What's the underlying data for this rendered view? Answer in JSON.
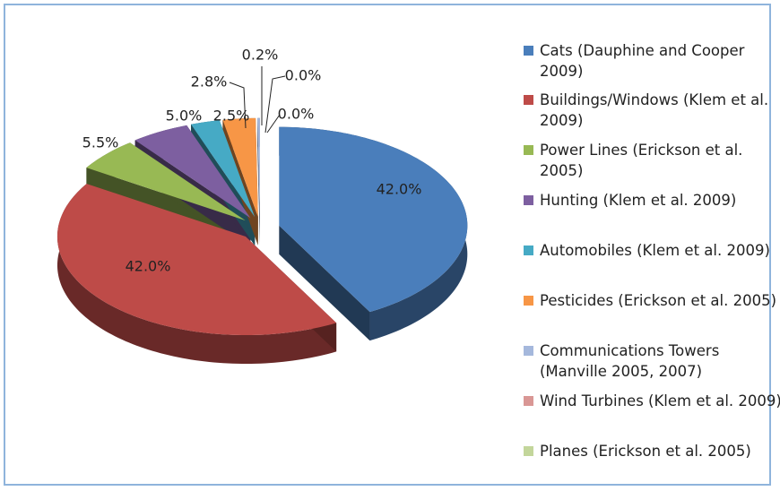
{
  "chart_data": {
    "type": "pie",
    "categories": [
      "Cats (Dauphine and Cooper 2009)",
      "Buildings/Windows (Klem et al. 2009)",
      "Power Lines (Erickson et al. 2005)",
      "Hunting (Klem et al. 2009)",
      "Automobiles (Klem et al. 2009)",
      "Pesticides (Erickson et al. 2005)",
      "Communications Towers (Manville 2005, 2007)",
      "Wind Turbines (Klem et al. 2009)",
      "Planes (Erickson et al. 2005)"
    ],
    "values": [
      42.0,
      42.0,
      5.5,
      5.0,
      2.5,
      2.8,
      0.2,
      0.0,
      0.0
    ],
    "value_labels": [
      "42.0%",
      "42.0%",
      "5.5%",
      "5.0%",
      "2.5%",
      "2.8%",
      "0.2%",
      "0.0%",
      "0.0%"
    ],
    "colors": [
      "#4a7ebb",
      "#be4b48",
      "#98b954",
      "#7d5fa0",
      "#46aac5",
      "#f79646",
      "#a5b8dc",
      "#d99795",
      "#c3d69b"
    ],
    "legend": "right"
  }
}
